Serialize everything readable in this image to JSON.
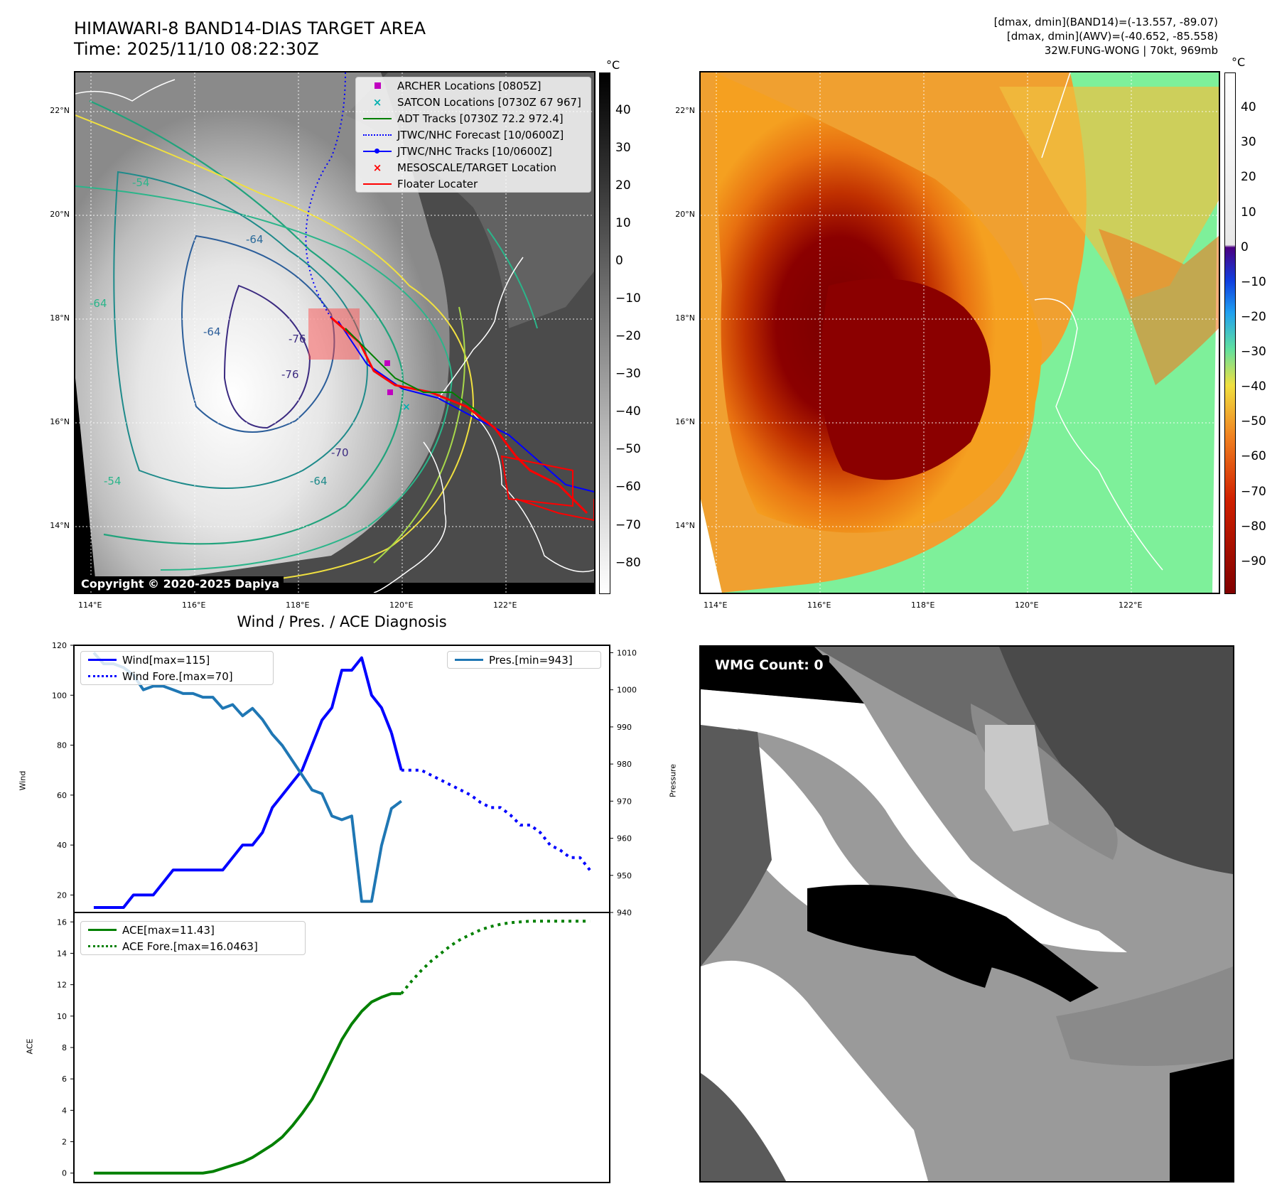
{
  "header": {
    "title_line1": "HIMAWARI-8 BAND14-DIAS TARGET AREA",
    "title_line2": "Time: 2025/11/10 08:22:30Z",
    "info_line1": "[dmax, dmin](BAND14)=(-13.557, -89.07)",
    "info_line2": "[dmax, dmin](AWV)=(-40.652, -85.558)",
    "info_line3": "32W.FUNG-WONG | 70kt, 969mb"
  },
  "map_axes": {
    "lat_labels": [
      "22°N",
      "20°N",
      "18°N",
      "16°N",
      "14°N"
    ],
    "lon_labels": [
      "114°E",
      "116°E",
      "118°E",
      "120°E",
      "122°E"
    ]
  },
  "ir_panel": {
    "colorbar_unit": "°C",
    "colorbar_ticks": [
      "40",
      "30",
      "20",
      "10",
      "0",
      "−10",
      "−20",
      "−30",
      "−40",
      "−50",
      "−60",
      "−70",
      "−80"
    ],
    "legend": [
      {
        "label": "ARCHER Locations [0805Z]",
        "color": "#c000c0",
        "marker": "square"
      },
      {
        "label": "SATCON Locations [0730Z 67 967]",
        "color": "#00b0b0",
        "marker": "x"
      },
      {
        "label": "ADT Tracks [0730Z 72.2 972.4]",
        "color": "#008000",
        "marker": "line"
      },
      {
        "label": "JTWC/NHC Forecast [10/0600Z]",
        "color": "#0000ff",
        "marker": "dotted"
      },
      {
        "label": "JTWC/NHC Tracks [10/0600Z]",
        "color": "#0000ff",
        "marker": "line-dot"
      },
      {
        "label": "MESOSCALE/TARGET Location",
        "color": "#ff0000",
        "marker": "x"
      },
      {
        "label": "Floater Locater",
        "color": "#ff0000",
        "marker": "line"
      }
    ],
    "contour_labels": [
      "-54",
      "-64",
      "-70",
      "-76",
      "-64",
      "-54",
      "-64",
      "-76",
      "-64"
    ],
    "copyright": "Copyright © 2020-2025 Dapiya"
  },
  "awv_panel": {
    "colorbar_unit": "°C",
    "colorbar_ticks": [
      "40",
      "30",
      "20",
      "10",
      "0",
      "−10",
      "−20",
      "−30",
      "−40",
      "−50",
      "−60",
      "−70",
      "−80",
      "−90"
    ]
  },
  "wmg_panel": {
    "label": "WMG Count: 0"
  },
  "colors": {
    "wind": "#0000ff",
    "pressure": "#1f77b4",
    "ace": "#008000",
    "floater": "#ff0000"
  },
  "chart_data": [
    {
      "type": "line",
      "title": "Wind / Pres. / ACE Diagnosis",
      "ylabel": "Wind",
      "ylabel_right": "Pressure",
      "ylim": [
        13,
        120
      ],
      "ylim_right": [
        940,
        1012
      ],
      "yticks": [
        20,
        40,
        60,
        80,
        100,
        120
      ],
      "yticks_right": [
        940,
        950,
        960,
        970,
        980,
        990,
        1000,
        1010
      ],
      "x": [
        0,
        1,
        2,
        3,
        4,
        5,
        6,
        7,
        8,
        9,
        10,
        11,
        12,
        13,
        14,
        15,
        16,
        17,
        18,
        19,
        20,
        21,
        22,
        23,
        24,
        25,
        26,
        27,
        28,
        29,
        30,
        31,
        32,
        33,
        34,
        35,
        36,
        37,
        38,
        39,
        40,
        41,
        42,
        43,
        44,
        45,
        46,
        47,
        48,
        49,
        50
      ],
      "legend_left": [
        "Wind[max=115]",
        "Wind Fore.[max=70]"
      ],
      "legend_right": [
        "Pres.[min=943]"
      ],
      "series": [
        {
          "name": "Wind[max=115]",
          "axis": "left",
          "style": "solid",
          "x": [
            0,
            1,
            2,
            3,
            4,
            5,
            6,
            7,
            8,
            9,
            10,
            11,
            12,
            13,
            14,
            15,
            16,
            17,
            18,
            19,
            20,
            21,
            22,
            23,
            24,
            25,
            26,
            27,
            28,
            29,
            30
          ],
          "values": [
            15,
            15,
            15,
            15,
            20,
            20,
            20,
            25,
            30,
            30,
            30,
            30,
            30,
            30,
            35,
            40,
            40,
            45,
            55,
            60,
            65,
            70,
            80,
            90,
            95,
            110,
            110,
            115,
            100,
            95,
            85
          ]
        },
        {
          "name": "Wind[max=115] (cont.)",
          "axis": "left",
          "style": "solid",
          "x": [
            30,
            31
          ],
          "values": [
            85,
            70
          ]
        },
        {
          "name": "Wind Fore.[max=70]",
          "axis": "left",
          "style": "dotted",
          "x": [
            31,
            32,
            33,
            34,
            35,
            36,
            37,
            38,
            39,
            40,
            41,
            42,
            43,
            44,
            45,
            46,
            47,
            48,
            49,
            50
          ],
          "values": [
            70,
            70,
            70,
            68,
            66,
            64,
            62,
            60,
            57,
            55,
            55,
            52,
            48,
            48,
            45,
            40,
            38,
            35,
            35,
            30
          ]
        },
        {
          "name": "Pres.[min=943]",
          "axis": "right",
          "style": "solid",
          "x": [
            0,
            1,
            2,
            3,
            4,
            5,
            6,
            7,
            8,
            9,
            10,
            11,
            12,
            13,
            14,
            15,
            16,
            17,
            18,
            19,
            20,
            21,
            22,
            23,
            24,
            25,
            26,
            27,
            28,
            29,
            30,
            31
          ],
          "values": [
            1010,
            1007,
            1007,
            1006,
            1004,
            1000,
            1001,
            1001,
            1000,
            999,
            999,
            998,
            998,
            995,
            996,
            993,
            995,
            992,
            988,
            985,
            981,
            977,
            973,
            972,
            966,
            965,
            966,
            943,
            943,
            958,
            968,
            970
          ]
        }
      ]
    },
    {
      "type": "line",
      "ylabel": "ACE",
      "ylim": [
        -0.6,
        16.6
      ],
      "yticks": [
        0,
        2,
        4,
        6,
        8,
        10,
        12,
        14,
        16
      ],
      "legend": [
        "ACE[max=11.43]",
        "ACE Fore.[max=16.0463]"
      ],
      "series": [
        {
          "name": "ACE[max=11.43]",
          "style": "solid",
          "x": [
            0,
            1,
            2,
            3,
            4,
            5,
            6,
            7,
            8,
            9,
            10,
            11,
            12,
            13,
            14,
            15,
            16,
            17,
            18,
            19,
            20,
            21,
            22,
            23,
            24,
            25,
            26,
            27,
            28,
            29,
            30,
            31
          ],
          "values": [
            0,
            0,
            0,
            0,
            0,
            0,
            0,
            0,
            0,
            0,
            0,
            0,
            0.1,
            0.3,
            0.5,
            0.7,
            1.0,
            1.4,
            1.8,
            2.3,
            3.0,
            3.8,
            4.7,
            5.9,
            7.2,
            8.5,
            9.5,
            10.3,
            10.9,
            11.2,
            11.43,
            11.43
          ]
        },
        {
          "name": "ACE Fore.[max=16.0463]",
          "style": "dotted",
          "x": [
            31,
            32,
            33,
            34,
            35,
            36,
            37,
            38,
            39,
            40,
            41,
            42,
            43,
            44,
            45,
            46,
            47,
            48,
            49,
            50
          ],
          "values": [
            11.43,
            12.2,
            12.9,
            13.5,
            14.0,
            14.5,
            14.9,
            15.2,
            15.5,
            15.7,
            15.85,
            15.95,
            16.0,
            16.0463,
            16.0463,
            16.0463,
            16.0463,
            16.0463,
            16.0463,
            16.0463
          ]
        }
      ]
    }
  ]
}
